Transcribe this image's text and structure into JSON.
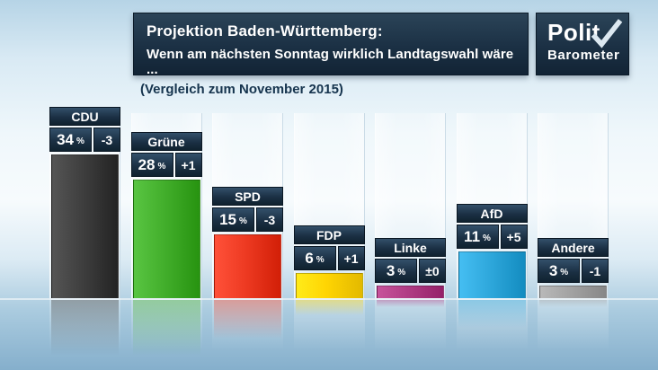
{
  "header": {
    "title_line1": "Projektion Baden-Württemberg:",
    "title_line2": "Wenn am nächsten Sonntag wirklich Landtagswahl wäre ...",
    "subtitle": "(Vergleich zum November 2015)"
  },
  "logo": {
    "line1": "Polit",
    "line2": "Barometer"
  },
  "chart_data": {
    "type": "bar",
    "title": "Projektion Baden-Württemberg: Wenn am nächsten Sonntag wirklich Landtagswahl wäre ...",
    "subtitle": "(Vergleich zum November 2015)",
    "unit": "%",
    "categories": [
      "CDU",
      "Grüne",
      "SPD",
      "FDP",
      "Linke",
      "AfD",
      "Andere"
    ],
    "values": [
      34,
      28,
      15,
      6,
      3,
      11,
      3
    ],
    "changes": [
      "-3",
      "+1",
      "-3",
      "+1",
      "±0",
      "+5",
      "-1"
    ],
    "colors": [
      "#3f3f3f",
      "#43af2c",
      "#ee3b23",
      "#ffd503",
      "#b13d85",
      "#2fa8dc",
      "#a3a3a3"
    ],
    "label_box_color": "#1b3044",
    "ylim": [
      0,
      40
    ],
    "legend": "none",
    "grid": "off"
  }
}
